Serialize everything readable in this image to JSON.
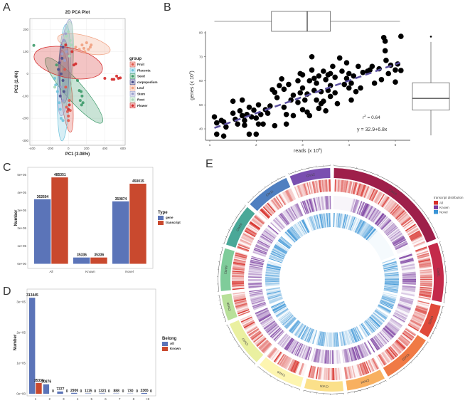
{
  "panels": {
    "a": "A",
    "b": "B",
    "c": "C",
    "d": "D",
    "e": "E"
  },
  "chart_data": [
    {
      "id": "A",
      "type": "scatter",
      "title": "2D PCA Plot",
      "xlabel": "PC1 (3.08%)",
      "ylabel": "PC2 (2.4%)",
      "xlim": [
        -400,
        600
      ],
      "ylim": [
        -300,
        200
      ],
      "xticks": [
        "-400",
        "-200",
        "0",
        "200",
        "400",
        "600"
      ],
      "yticks": [
        "-300",
        "-200",
        "-100",
        "0",
        "100",
        "200"
      ],
      "xtick_values": [
        -400,
        -200,
        0,
        200,
        400,
        600
      ],
      "ytick_values": [
        -300,
        -200,
        -100,
        0,
        100,
        200
      ],
      "grid": true,
      "legend_title": "group",
      "legend_position": "right",
      "groups": [
        {
          "name": "Fruit",
          "color": "#e0574a",
          "points": [
            [
              -20,
              -150
            ],
            [
              -10,
              -170
            ],
            [
              0,
              -190
            ],
            [
              10,
              -120
            ],
            [
              -30,
              -60
            ],
            [
              -40,
              20
            ],
            [
              0,
              -210
            ],
            [
              20,
              -165
            ]
          ]
        },
        {
          "name": "Placenta",
          "color": "#6ec3dc",
          "points": [
            [
              -150,
              -20
            ],
            [
              -140,
              -50
            ],
            [
              -100,
              -130
            ],
            [
              -80,
              -200
            ],
            [
              -60,
              -210
            ],
            [
              -120,
              -80
            ],
            [
              -90,
              -160
            ]
          ]
        },
        {
          "name": "Seed",
          "color": "#3d9a6a",
          "points": [
            [
              -380,
              128
            ],
            [
              100,
              -30
            ],
            [
              120,
              -75
            ],
            [
              140,
              -80
            ],
            [
              150,
              -100
            ],
            [
              160,
              -130
            ],
            [
              145,
              -140
            ],
            [
              130,
              -120
            ],
            [
              -130,
              40
            ]
          ]
        },
        {
          "name": "carpopodium",
          "color": "#4b4f8c",
          "points": [
            [
              -100,
              50
            ],
            [
              -80,
              0
            ],
            [
              -60,
              -30
            ],
            [
              -90,
              -100
            ],
            [
              -70,
              70
            ],
            [
              -50,
              -80
            ],
            [
              -110,
              20
            ],
            [
              -60,
              120
            ]
          ]
        },
        {
          "name": "Leaf",
          "color": "#f0a080",
          "points": [
            [
              80,
              120
            ],
            [
              150,
              130
            ],
            [
              200,
              140
            ],
            [
              250,
              130
            ],
            [
              220,
              110
            ],
            [
              180,
              100
            ],
            [
              240,
              120
            ],
            [
              120,
              110
            ],
            [
              170,
              115
            ]
          ]
        },
        {
          "name": "Stem",
          "color": "#9aa0cc",
          "points": [
            [
              -30,
              180
            ],
            [
              -50,
              150
            ],
            [
              -70,
              90
            ],
            [
              -40,
              60
            ],
            [
              -80,
              -60
            ],
            [
              -60,
              -120
            ],
            [
              -20,
              100
            ]
          ]
        },
        {
          "name": "Root",
          "color": "#a8d8b8",
          "points": [
            [
              0,
              190
            ],
            [
              20,
              150
            ],
            [
              30,
              130
            ],
            [
              -20,
              170
            ],
            [
              10,
              80
            ],
            [
              -150,
              -60
            ]
          ]
        },
        {
          "name": "Flower",
          "color": "#d42a2a",
          "points": [
            [
              400,
              -20
            ],
            [
              480,
              -25
            ],
            [
              500,
              -25
            ],
            [
              530,
              -10
            ],
            [
              550,
              -20
            ],
            [
              570,
              -18
            ],
            [
              60,
              40
            ],
            [
              80,
              45
            ],
            [
              -30,
              130
            ],
            [
              40,
              100
            ],
            [
              0,
              -160
            ],
            [
              10,
              -140
            ]
          ]
        }
      ]
    },
    {
      "id": "B",
      "type": "scatter",
      "xlabel": "reads (x 10",
      "xlabel_exp": "6",
      "xlabel_end": ")",
      "ylabel": "genes (x 10",
      "ylabel_exp": "3",
      "ylabel_end": ")",
      "xlim": [
        1,
        5.2
      ],
      "ylim": [
        36,
        80
      ],
      "xticks": [
        "1",
        "2",
        "3",
        "4",
        "5"
      ],
      "xtick_values": [
        1,
        2,
        3,
        4,
        5
      ],
      "yticks": [
        "40",
        "50",
        "60",
        "70",
        "80"
      ],
      "ytick_values": [
        40,
        50,
        60,
        70,
        80
      ],
      "r2_label": "r",
      "r2_exp": "2",
      "r2_value": " = 0.64",
      "equation": "y = 32.9+6.8x",
      "fit": {
        "intercept": 32.9,
        "slope": 6.8,
        "color": "#5b4fa0"
      },
      "x_boxplot": {
        "min": 1.1,
        "q1": 2.33,
        "median": 3.1,
        "q3": 3.6,
        "max": 5.1
      },
      "y_boxplot": {
        "min": 37.3,
        "q1": 47.8,
        "median": 52.7,
        "q3": 59.2,
        "max": 76.2,
        "outliers": [
          78.4
        ]
      },
      "points": [
        [
          1.1,
          45
        ],
        [
          1.15,
          42.5
        ],
        [
          1.15,
          37.8
        ],
        [
          1.3,
          37
        ],
        [
          1.25,
          43.5
        ],
        [
          1.35,
          40.8
        ],
        [
          1.3,
          42.9
        ],
        [
          1.5,
          46.5
        ],
        [
          1.5,
          51.5
        ],
        [
          1.55,
          44
        ],
        [
          1.6,
          42
        ],
        [
          1.65,
          47.5
        ],
        [
          1.7,
          52
        ],
        [
          1.7,
          45.5
        ],
        [
          1.75,
          43.5
        ],
        [
          1.75,
          41.5
        ],
        [
          1.8,
          46
        ],
        [
          1.85,
          37.8
        ],
        [
          1.85,
          49
        ],
        [
          1.9,
          45
        ],
        [
          1.95,
          47.8
        ],
        [
          2.0,
          44.5
        ],
        [
          2.0,
          37.8
        ],
        [
          2.05,
          42
        ],
        [
          2.05,
          50
        ],
        [
          2.1,
          46
        ],
        [
          2.15,
          42
        ],
        [
          2.2,
          48
        ],
        [
          2.25,
          46.5
        ],
        [
          2.3,
          49.5
        ],
        [
          2.35,
          56.3
        ],
        [
          2.4,
          55.2
        ],
        [
          2.4,
          41.3
        ],
        [
          2.45,
          53
        ],
        [
          2.5,
          58
        ],
        [
          2.55,
          60.8
        ],
        [
          2.6,
          56.5
        ],
        [
          2.6,
          49
        ],
        [
          2.65,
          46
        ],
        [
          2.65,
          42
        ],
        [
          2.7,
          58.5
        ],
        [
          2.75,
          52
        ],
        [
          2.8,
          54
        ],
        [
          2.8,
          45.5
        ],
        [
          2.9,
          51
        ],
        [
          2.9,
          60
        ],
        [
          2.95,
          63
        ],
        [
          3.0,
          62.5
        ],
        [
          3.0,
          57
        ],
        [
          3.0,
          48
        ],
        [
          3.05,
          52
        ],
        [
          3.1,
          54.5
        ],
        [
          3.1,
          47
        ],
        [
          3.15,
          45.5
        ],
        [
          3.2,
          70
        ],
        [
          3.2,
          64.5
        ],
        [
          3.25,
          61
        ],
        [
          3.25,
          56
        ],
        [
          3.3,
          59
        ],
        [
          3.3,
          52
        ],
        [
          3.35,
          62
        ],
        [
          3.35,
          48.5
        ],
        [
          3.4,
          55.5
        ],
        [
          3.45,
          64
        ],
        [
          3.45,
          51.5
        ],
        [
          3.5,
          60.5
        ],
        [
          3.5,
          47.5
        ],
        [
          3.55,
          56
        ],
        [
          3.6,
          58
        ],
        [
          3.6,
          53.5
        ],
        [
          3.65,
          66
        ],
        [
          3.7,
          61.5
        ],
        [
          3.7,
          55
        ],
        [
          3.75,
          50.5
        ],
        [
          3.8,
          69.5
        ],
        [
          3.85,
          64
        ],
        [
          3.9,
          58.5
        ],
        [
          3.95,
          67.5
        ],
        [
          4.0,
          63
        ],
        [
          4.0,
          57
        ],
        [
          4.05,
          59
        ],
        [
          4.05,
          52
        ],
        [
          4.1,
          62
        ],
        [
          4.15,
          55.5
        ],
        [
          4.2,
          66
        ],
        [
          4.25,
          57
        ],
        [
          4.3,
          63.5
        ],
        [
          4.45,
          64.5
        ],
        [
          4.5,
          66
        ],
        [
          4.55,
          59
        ],
        [
          4.65,
          65
        ],
        [
          4.7,
          60.5
        ],
        [
          4.75,
          78
        ],
        [
          4.78,
          76.5
        ],
        [
          4.78,
          72.5
        ],
        [
          4.8,
          68.5
        ],
        [
          4.85,
          63
        ],
        [
          4.9,
          66.5
        ],
        [
          5.0,
          59.5
        ],
        [
          5.0,
          64.5
        ],
        [
          5.05,
          67
        ],
        [
          5.12,
          78.5
        ],
        [
          5.12,
          64.3
        ],
        [
          3.95,
          61
        ],
        [
          3.55,
          62.5
        ],
        [
          3.15,
          60
        ],
        [
          2.95,
          55
        ],
        [
          3.4,
          50.5
        ],
        [
          3.6,
          63
        ],
        [
          4.4,
          64
        ]
      ]
    },
    {
      "id": "C",
      "type": "bar",
      "ylabel": "Number",
      "categories": [
        "All",
        "Known",
        "Novel"
      ],
      "ylim": [
        0,
        500000
      ],
      "ytick_values": [
        0,
        100000,
        200000,
        300000,
        400000,
        500000
      ],
      "yticks": [
        "0e+00",
        "1e+05",
        "2e+05",
        "3e+05",
        "4e+05",
        "5e+05"
      ],
      "legend_title": "Type",
      "legend_position": "right",
      "series": [
        {
          "name": "gene",
          "color": "#5b74b8",
          "values": [
            362604,
            35336,
            350874
          ],
          "labels": [
            "362604",
            "35336",
            "350874"
          ]
        },
        {
          "name": "transcript",
          "color": "#c9492e",
          "values": [
            485351,
            35336,
            450015
          ],
          "labels": [
            "485351",
            "35336",
            "450015"
          ]
        }
      ]
    },
    {
      "id": "D",
      "type": "bar",
      "ylabel": "Number",
      "categories": [
        "1",
        "2",
        "3",
        "4",
        "5",
        "6",
        "7",
        "8",
        ">9"
      ],
      "ylim": [
        0,
        300000
      ],
      "ytick_values": [
        0,
        100000,
        200000,
        300000
      ],
      "yticks": [
        "0e+00",
        "1e+05",
        "2e+05",
        "3e+05"
      ],
      "legend_title": "Belong",
      "legend_position": "right",
      "series": [
        {
          "name": "All",
          "color": "#5b74b8",
          "values": [
            313445,
            30876,
            7377,
            2906,
            1115,
            1321,
            888,
            730,
            2365
          ],
          "labels": [
            "313445",
            "30876",
            "7377",
            "2906",
            "1115",
            "1321",
            "888",
            "730",
            "2365"
          ]
        },
        {
          "name": "Known",
          "color": "#c9492e",
          "values": [
            35336,
            0,
            0,
            0,
            0,
            0,
            0,
            0,
            0
          ],
          "labels": [
            "35336",
            "0",
            "0",
            "0",
            "0",
            "0",
            "0",
            "0",
            "0"
          ]
        }
      ]
    },
    {
      "id": "E",
      "type": "heatmap",
      "layout": "circos",
      "legend_title": "transcript distribution",
      "legend_position": "top-right",
      "tracks": [
        {
          "name": "All",
          "color": "#d7302a"
        },
        {
          "name": "Known",
          "color": "#7b3fa0"
        },
        {
          "name": "Novel",
          "color": "#3a94d6"
        }
      ],
      "chromosomes": [
        {
          "name": "Chr00",
          "relative_length": 70,
          "color": "#9e1f4a"
        },
        {
          "name": "Chr01",
          "relative_length": 32,
          "color": "#c42a4a"
        },
        {
          "name": "Chr02",
          "relative_length": 18,
          "color": "#e04a3a"
        },
        {
          "name": "Chr03",
          "relative_length": 28,
          "color": "#f07a45"
        },
        {
          "name": "Chr04",
          "relative_length": 21,
          "color": "#f8b060"
        },
        {
          "name": "Chr05",
          "relative_length": 21,
          "color": "#fbe08a"
        },
        {
          "name": "Chr06",
          "relative_length": 25,
          "color": "#fdf5b0"
        },
        {
          "name": "Chr07",
          "relative_length": 25,
          "color": "#eaf0a0"
        },
        {
          "name": "Chr08",
          "relative_length": 14,
          "color": "#b8e09a"
        },
        {
          "name": "Chr09",
          "relative_length": 23,
          "color": "#7fcc9a"
        },
        {
          "name": "Chr10",
          "relative_length": 23,
          "color": "#4aa898"
        },
        {
          "name": "Chr11",
          "relative_length": 24,
          "color": "#4f7fc0"
        },
        {
          "name": "Chr12",
          "relative_length": 22,
          "color": "#7a4fb0"
        }
      ]
    }
  ]
}
